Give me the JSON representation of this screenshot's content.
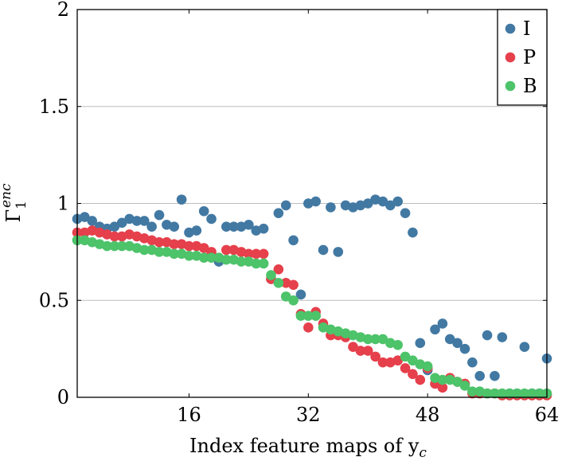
{
  "chart_data": {
    "type": "scatter",
    "title": "",
    "xlabel": "Index feature maps of y",
    "xlabel_sub": "c",
    "ylabel": "Γ",
    "ylabel_sub": "1",
    "ylabel_sup": "enc",
    "xlim": [
      1,
      64
    ],
    "ylim": [
      0,
      2
    ],
    "xticks": [
      16,
      32,
      48,
      64
    ],
    "yticks": [
      0,
      0.5,
      1,
      1.5,
      2
    ],
    "xtick_labels": [
      "16",
      "32",
      "48",
      "64"
    ],
    "ytick_labels": [
      "0",
      "0.5",
      "1",
      "1.5",
      "2"
    ],
    "grid": "horizontal",
    "legend_position": "top-right",
    "series": [
      {
        "name": "I",
        "color": "#4279a3",
        "x": [
          1,
          2,
          3,
          4,
          5,
          6,
          7,
          8,
          9,
          10,
          11,
          12,
          13,
          14,
          15,
          16,
          17,
          18,
          19,
          20,
          21,
          22,
          23,
          24,
          25,
          26,
          27,
          28,
          29,
          30,
          31,
          32,
          33,
          34,
          35,
          36,
          37,
          38,
          39,
          40,
          41,
          42,
          43,
          44,
          45,
          46,
          47,
          48,
          49,
          50,
          51,
          52,
          53,
          54,
          55,
          56,
          57,
          58,
          59,
          60,
          61,
          62,
          63,
          64
        ],
        "values": [
          0.92,
          0.93,
          0.91,
          0.88,
          0.87,
          0.88,
          0.9,
          0.92,
          0.91,
          0.91,
          0.88,
          0.94,
          0.89,
          0.88,
          1.02,
          0.85,
          0.86,
          0.96,
          0.92,
          0.7,
          0.88,
          0.88,
          0.88,
          0.89,
          0.86,
          0.87,
          0.61,
          0.95,
          0.99,
          0.81,
          0.53,
          1.0,
          1.01,
          0.76,
          0.98,
          0.75,
          0.99,
          0.98,
          0.99,
          1.0,
          1.02,
          1.01,
          0.99,
          1.01,
          0.95,
          0.85,
          0.28,
          0.14,
          0.35,
          0.38,
          0.3,
          0.28,
          0.25,
          0.18,
          0.11,
          0.32,
          0.11,
          0.31,
          0.02,
          0.02,
          0.26,
          0.02,
          0.02,
          0.2
        ]
      },
      {
        "name": "P",
        "color": "#e5404b",
        "x": [
          1,
          2,
          3,
          4,
          5,
          6,
          7,
          8,
          9,
          10,
          11,
          12,
          13,
          14,
          15,
          16,
          17,
          18,
          19,
          20,
          21,
          22,
          23,
          24,
          25,
          26,
          27,
          28,
          29,
          30,
          31,
          32,
          33,
          34,
          35,
          36,
          37,
          38,
          39,
          40,
          41,
          42,
          43,
          44,
          45,
          46,
          47,
          48,
          49,
          50,
          51,
          52,
          53,
          54,
          55,
          56,
          57,
          58,
          59,
          60,
          61,
          62,
          63,
          64
        ],
        "values": [
          0.85,
          0.85,
          0.86,
          0.85,
          0.84,
          0.83,
          0.83,
          0.84,
          0.83,
          0.82,
          0.81,
          0.8,
          0.8,
          0.79,
          0.79,
          0.78,
          0.78,
          0.77,
          0.75,
          0.72,
          0.76,
          0.76,
          0.75,
          0.74,
          0.74,
          0.74,
          0.61,
          0.66,
          0.59,
          0.58,
          0.43,
          0.36,
          0.44,
          0.38,
          0.32,
          0.32,
          0.31,
          0.26,
          0.24,
          0.24,
          0.21,
          0.18,
          0.18,
          0.19,
          0.15,
          0.12,
          0.09,
          0.15,
          0.07,
          0.05,
          0.1,
          0.08,
          0.07,
          0.02,
          0.02,
          0.02,
          0.02,
          0.01,
          0.01,
          0.01,
          0.01,
          0.01,
          0.01,
          0.01
        ]
      },
      {
        "name": "B",
        "color": "#4dc36a",
        "x": [
          1,
          2,
          3,
          4,
          5,
          6,
          7,
          8,
          9,
          10,
          11,
          12,
          13,
          14,
          15,
          16,
          17,
          18,
          19,
          20,
          21,
          22,
          23,
          24,
          25,
          26,
          27,
          28,
          29,
          30,
          31,
          32,
          33,
          34,
          35,
          36,
          37,
          38,
          39,
          40,
          41,
          42,
          43,
          44,
          45,
          46,
          47,
          48,
          49,
          50,
          51,
          52,
          53,
          54,
          55,
          56,
          57,
          58,
          59,
          60,
          61,
          62,
          63,
          64
        ],
        "values": [
          0.81,
          0.81,
          0.8,
          0.79,
          0.78,
          0.78,
          0.78,
          0.78,
          0.77,
          0.76,
          0.76,
          0.75,
          0.75,
          0.74,
          0.74,
          0.73,
          0.73,
          0.72,
          0.72,
          0.72,
          0.71,
          0.71,
          0.7,
          0.7,
          0.69,
          0.69,
          0.63,
          0.59,
          0.52,
          0.5,
          0.42,
          0.42,
          0.42,
          0.36,
          0.35,
          0.34,
          0.33,
          0.32,
          0.31,
          0.3,
          0.3,
          0.3,
          0.28,
          0.27,
          0.21,
          0.19,
          0.17,
          0.16,
          0.1,
          0.09,
          0.09,
          0.08,
          0.06,
          0.03,
          0.03,
          0.02,
          0.02,
          0.02,
          0.02,
          0.02,
          0.02,
          0.02,
          0.02,
          0.02
        ]
      }
    ]
  }
}
